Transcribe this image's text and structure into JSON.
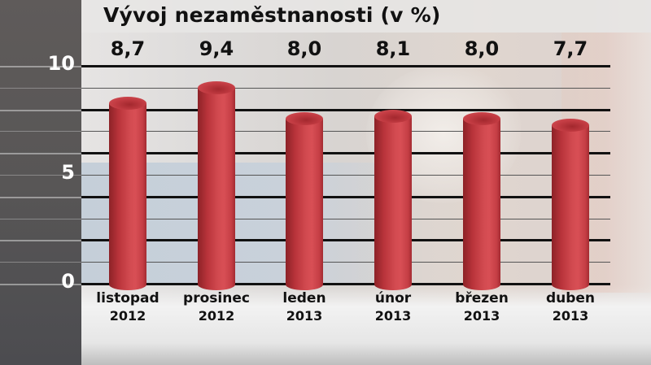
{
  "chart_data": {
    "type": "bar",
    "title": "Vývoj nezaměstnanosti (v %)",
    "categories": [
      "listopad 2012",
      "prosinec 2012",
      "leden 2013",
      "únor 2013",
      "březen 2013",
      "duben 2013"
    ],
    "category_lines": [
      {
        "month": "listopad",
        "year": "2012"
      },
      {
        "month": "prosinec",
        "year": "2012"
      },
      {
        "month": "leden",
        "year": "2013"
      },
      {
        "month": "únor",
        "year": "2013"
      },
      {
        "month": "březen",
        "year": "2013"
      },
      {
        "month": "duben",
        "year": "2013"
      }
    ],
    "values": [
      8.7,
      9.4,
      8.0,
      8.1,
      8.0,
      7.7
    ],
    "value_labels": [
      "8,7",
      "9,4",
      "8,0",
      "8,1",
      "8,0",
      "7,7"
    ],
    "xlabel": "",
    "ylabel": "",
    "ylim": [
      0,
      10
    ],
    "yticks": [
      "0",
      "5",
      "10"
    ],
    "grid": true,
    "bar_style": "3D cylinder",
    "bar_color": "#c8383f"
  }
}
